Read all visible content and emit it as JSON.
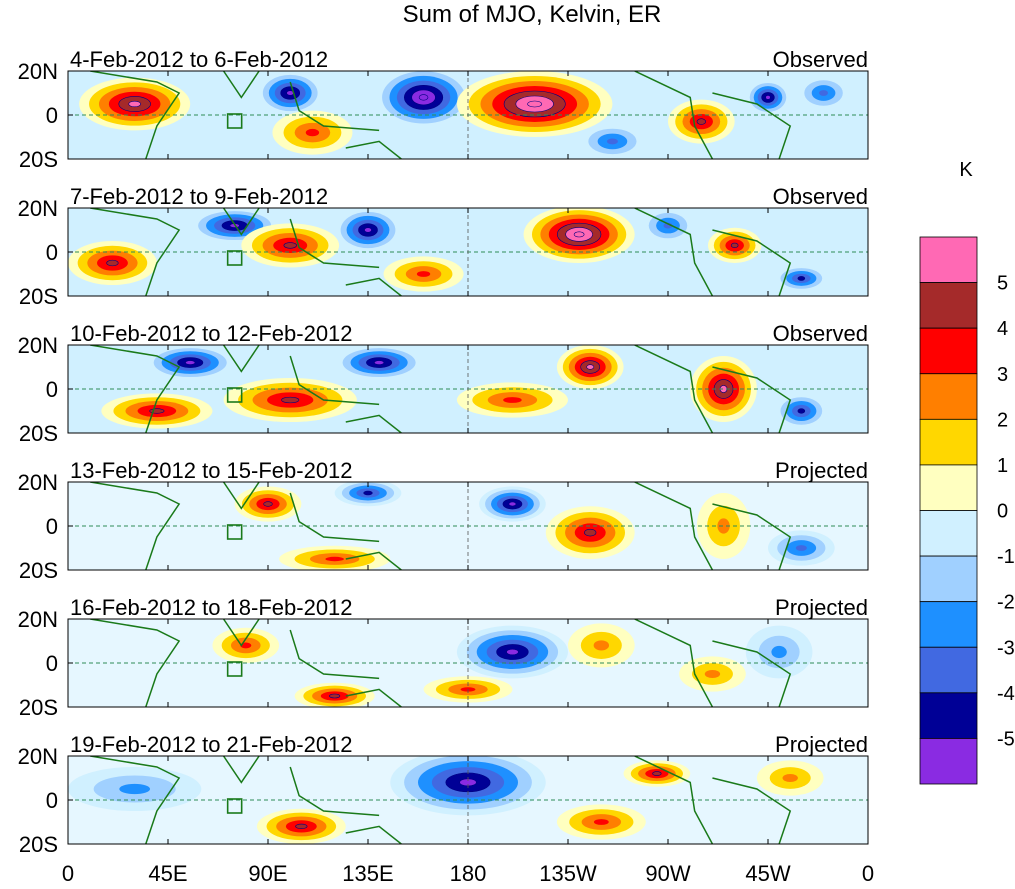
{
  "chart_data": {
    "type": "heatmap",
    "title": "Sum of MJO, Kelvin, ER",
    "colorbar": {
      "unit": "K",
      "levels": [
        5,
        4,
        3,
        2,
        1,
        0,
        -1,
        -2,
        -3,
        -4,
        -5
      ],
      "colors": [
        "#ff69b4",
        "#a52a2a",
        "#ff0000",
        "#ff7f00",
        "#ffd700",
        "#ffffc0",
        "#d0f0ff",
        "#a0d0ff",
        "#1e90ff",
        "#4169e1",
        "#000096",
        "#8a2be2"
      ]
    },
    "lat_ticks": [
      "20N",
      "0",
      "20S"
    ],
    "lon_ticks": [
      "0",
      "45E",
      "90E",
      "135E",
      "180",
      "135W",
      "90W",
      "45W",
      "0"
    ],
    "panels": [
      {
        "period": "4-Feb-2012 to 6-Feb-2012",
        "status": "Observed"
      },
      {
        "period": "7-Feb-2012 to 9-Feb-2012",
        "status": "Observed"
      },
      {
        "period": "10-Feb-2012 to 12-Feb-2012",
        "status": "Observed"
      },
      {
        "period": "13-Feb-2012 to 15-Feb-2012",
        "status": "Projected"
      },
      {
        "period": "16-Feb-2012 to 18-Feb-2012",
        "status": "Projected"
      },
      {
        "period": "19-Feb-2012 to 21-Feb-2012",
        "status": "Projected"
      }
    ],
    "anomalies": [
      [
        {
          "lon": 30,
          "lat": 5,
          "rx": 25,
          "ry": 12,
          "v": 4.5
        },
        {
          "lon": 100,
          "lat": 10,
          "rx": 15,
          "ry": 10,
          "v": -4.5
        },
        {
          "lon": 110,
          "lat": -8,
          "rx": 18,
          "ry": 10,
          "v": 3
        },
        {
          "lon": 160,
          "lat": 8,
          "rx": 22,
          "ry": 14,
          "v": -5.5
        },
        {
          "lon": 210,
          "lat": 5,
          "rx": 35,
          "ry": 15,
          "v": 5.5
        },
        {
          "lon": 245,
          "lat": -12,
          "rx": 15,
          "ry": 8,
          "v": -3
        },
        {
          "lon": 285,
          "lat": -3,
          "rx": 15,
          "ry": 10,
          "v": 3.5
        },
        {
          "lon": 315,
          "lat": 8,
          "rx": 10,
          "ry": 8,
          "v": -4.5
        },
        {
          "lon": 340,
          "lat": 10,
          "rx": 12,
          "ry": 8,
          "v": -3
        }
      ],
      [
        {
          "lon": 20,
          "lat": -5,
          "rx": 20,
          "ry": 10,
          "v": 4
        },
        {
          "lon": 75,
          "lat": 12,
          "rx": 20,
          "ry": 8,
          "v": -5
        },
        {
          "lon": 100,
          "lat": 3,
          "rx": 22,
          "ry": 10,
          "v": 4
        },
        {
          "lon": 135,
          "lat": 10,
          "rx": 15,
          "ry": 10,
          "v": -5
        },
        {
          "lon": 160,
          "lat": -10,
          "rx": 18,
          "ry": 8,
          "v": 3
        },
        {
          "lon": 230,
          "lat": 8,
          "rx": 25,
          "ry": 13,
          "v": 5.5
        },
        {
          "lon": 270,
          "lat": 12,
          "rx": 12,
          "ry": 8,
          "v": -2.5
        },
        {
          "lon": 300,
          "lat": 3,
          "rx": 12,
          "ry": 8,
          "v": 4
        },
        {
          "lon": 330,
          "lat": -12,
          "rx": 12,
          "ry": 6,
          "v": -4
        }
      ],
      [
        {
          "lon": 40,
          "lat": -10,
          "rx": 25,
          "ry": 8,
          "v": 4
        },
        {
          "lon": 55,
          "lat": 12,
          "rx": 20,
          "ry": 8,
          "v": -5
        },
        {
          "lon": 100,
          "lat": -5,
          "rx": 30,
          "ry": 10,
          "v": 3.5
        },
        {
          "lon": 140,
          "lat": 12,
          "rx": 20,
          "ry": 8,
          "v": -4.5
        },
        {
          "lon": 200,
          "lat": -5,
          "rx": 25,
          "ry": 8,
          "v": 3
        },
        {
          "lon": 235,
          "lat": 10,
          "rx": 15,
          "ry": 10,
          "v": 5
        },
        {
          "lon": 295,
          "lat": 0,
          "rx": 15,
          "ry": 15,
          "v": 4.5
        },
        {
          "lon": 330,
          "lat": -10,
          "rx": 12,
          "ry": 8,
          "v": -4
        }
      ],
      [
        {
          "lon": 90,
          "lat": 10,
          "rx": 15,
          "ry": 8,
          "v": 3.5
        },
        {
          "lon": 120,
          "lat": -15,
          "rx": 25,
          "ry": 6,
          "v": 3
        },
        {
          "lon": 135,
          "lat": 15,
          "rx": 15,
          "ry": 6,
          "v": -4
        },
        {
          "lon": 200,
          "lat": 10,
          "rx": 15,
          "ry": 8,
          "v": -4.5
        },
        {
          "lon": 235,
          "lat": -3,
          "rx": 20,
          "ry": 12,
          "v": 3.5
        },
        {
          "lon": 295,
          "lat": 0,
          "rx": 12,
          "ry": 15,
          "v": 2
        },
        {
          "lon": 330,
          "lat": -10,
          "rx": 15,
          "ry": 8,
          "v": -2.5
        }
      ],
      [
        {
          "lon": 80,
          "lat": 8,
          "rx": 15,
          "ry": 8,
          "v": 2.5
        },
        {
          "lon": 120,
          "lat": -15,
          "rx": 18,
          "ry": 6,
          "v": 4
        },
        {
          "lon": 200,
          "lat": 5,
          "rx": 25,
          "ry": 12,
          "v": -4.5
        },
        {
          "lon": 180,
          "lat": -12,
          "rx": 20,
          "ry": 6,
          "v": 3
        },
        {
          "lon": 240,
          "lat": 8,
          "rx": 15,
          "ry": 10,
          "v": 1.5
        },
        {
          "lon": 290,
          "lat": -5,
          "rx": 15,
          "ry": 8,
          "v": 1.5
        },
        {
          "lon": 320,
          "lat": 5,
          "rx": 15,
          "ry": 12,
          "v": -2
        }
      ],
      [
        {
          "lon": 30,
          "lat": 5,
          "rx": 30,
          "ry": 10,
          "v": -2
        },
        {
          "lon": 105,
          "lat": -12,
          "rx": 20,
          "ry": 8,
          "v": 3.5
        },
        {
          "lon": 180,
          "lat": 8,
          "rx": 35,
          "ry": 15,
          "v": -4.5
        },
        {
          "lon": 240,
          "lat": -10,
          "rx": 20,
          "ry": 8,
          "v": 2.5
        },
        {
          "lon": 265,
          "lat": 12,
          "rx": 15,
          "ry": 6,
          "v": 4
        },
        {
          "lon": 325,
          "lat": 10,
          "rx": 15,
          "ry": 8,
          "v": 1.5
        }
      ]
    ]
  }
}
